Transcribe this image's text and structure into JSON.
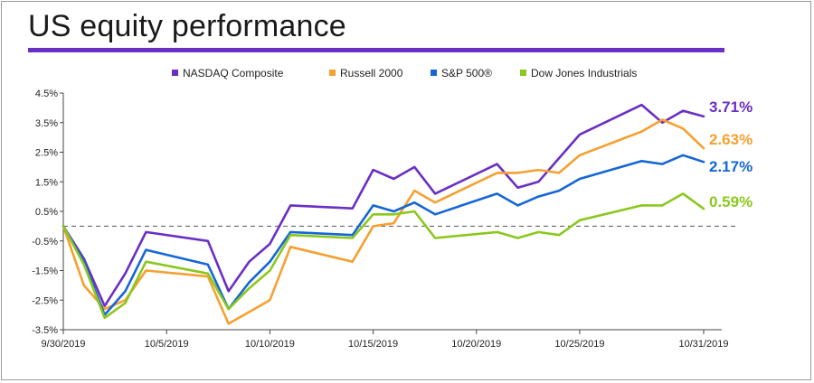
{
  "title": "US equity performance",
  "colors": {
    "NASDAQ Composite": "#6a2fc3",
    "Russell 2000": "#f5a030",
    "S&P 500®": "#1566d6",
    "Dow Jones Industrials": "#8bc81e",
    "title_rule": "#6a2fc3"
  },
  "chart_data": {
    "type": "line",
    "title": "US equity performance",
    "xlabel": "",
    "ylabel": "",
    "x_start": "9/30/2019",
    "x_end": "10/31/2019",
    "x_ticks": [
      "9/30/2019",
      "10/5/2019",
      "10/10/2019",
      "10/15/2019",
      "10/20/2019",
      "10/25/2019",
      "10/31/2019"
    ],
    "y_ticks": [
      "4.5%",
      "3.5%",
      "2.5%",
      "1.5%",
      "0.5%",
      "-0.5%",
      "-1.5%",
      "-2.5%",
      "-3.5%"
    ],
    "ylim": [
      -3.5,
      4.5
    ],
    "reference_line": 0,
    "legend_position": "top",
    "dates": [
      "9/30/2019",
      "10/1/2019",
      "10/2/2019",
      "10/3/2019",
      "10/4/2019",
      "10/7/2019",
      "10/8/2019",
      "10/9/2019",
      "10/10/2019",
      "10/11/2019",
      "10/14/2019",
      "10/15/2019",
      "10/16/2019",
      "10/17/2019",
      "10/18/2019",
      "10/21/2019",
      "10/22/2019",
      "10/23/2019",
      "10/24/2019",
      "10/25/2019",
      "10/28/2019",
      "10/29/2019",
      "10/30/2019",
      "10/31/2019"
    ],
    "series": [
      {
        "name": "NASDAQ Composite",
        "values": [
          0.0,
          -1.1,
          -2.7,
          -1.6,
          -0.2,
          -0.5,
          -2.2,
          -1.2,
          -0.6,
          0.7,
          0.6,
          1.9,
          1.6,
          2.0,
          1.1,
          2.1,
          1.3,
          1.5,
          2.3,
          3.1,
          4.1,
          3.5,
          3.9,
          3.71
        ],
        "end_label": "3.71%"
      },
      {
        "name": "Russell 2000",
        "values": [
          0.0,
          -2.0,
          -2.8,
          -2.5,
          -1.5,
          -1.7,
          -3.3,
          -2.9,
          -2.5,
          -0.7,
          -1.2,
          0.0,
          0.1,
          1.2,
          0.8,
          1.8,
          1.8,
          1.9,
          1.8,
          2.4,
          3.2,
          3.6,
          3.3,
          2.63
        ],
        "end_label": "2.63%"
      },
      {
        "name": "S&P 500®",
        "values": [
          0.0,
          -1.2,
          -3.0,
          -2.2,
          -0.8,
          -1.3,
          -2.8,
          -1.9,
          -1.2,
          -0.2,
          -0.3,
          0.7,
          0.5,
          0.8,
          0.4,
          1.1,
          0.7,
          1.0,
          1.2,
          1.6,
          2.2,
          2.1,
          2.4,
          2.17
        ],
        "end_label": "2.17%"
      },
      {
        "name": "Dow Jones Industrials",
        "values": [
          0.0,
          -1.3,
          -3.1,
          -2.6,
          -1.2,
          -1.6,
          -2.8,
          -2.1,
          -1.5,
          -0.3,
          -0.4,
          0.4,
          0.4,
          0.5,
          -0.4,
          -0.2,
          -0.4,
          -0.2,
          -0.3,
          0.2,
          0.7,
          0.7,
          1.1,
          0.59
        ],
        "end_label": "0.59%"
      }
    ]
  }
}
